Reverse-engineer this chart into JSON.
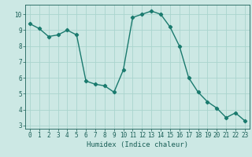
{
  "x": [
    0,
    1,
    2,
    3,
    4,
    5,
    6,
    7,
    8,
    9,
    10,
    11,
    12,
    13,
    14,
    15,
    16,
    17,
    18,
    19,
    20,
    21,
    22,
    23
  ],
  "y": [
    9.4,
    9.1,
    8.6,
    8.7,
    9.0,
    8.7,
    5.8,
    5.6,
    5.5,
    5.1,
    6.5,
    9.8,
    10.0,
    10.2,
    10.0,
    9.2,
    8.0,
    6.0,
    5.1,
    4.5,
    4.1,
    3.5,
    3.8,
    3.3
  ],
  "line_color": "#1a7a6e",
  "bg_color": "#cce8e4",
  "grid_color": "#aad4ce",
  "xlabel": "Humidex (Indice chaleur)",
  "ylim": [
    2.8,
    10.6
  ],
  "xlim": [
    -0.5,
    23.5
  ],
  "yticks": [
    3,
    4,
    5,
    6,
    7,
    8,
    9,
    10
  ],
  "xticks": [
    0,
    1,
    2,
    3,
    4,
    5,
    6,
    7,
    8,
    9,
    10,
    11,
    12,
    13,
    14,
    15,
    16,
    17,
    18,
    19,
    20,
    21,
    22,
    23
  ],
  "marker_size": 2.2,
  "line_width": 1.0,
  "font_color": "#1a5f57",
  "label_fontsize": 6.5,
  "tick_fontsize": 5.5
}
